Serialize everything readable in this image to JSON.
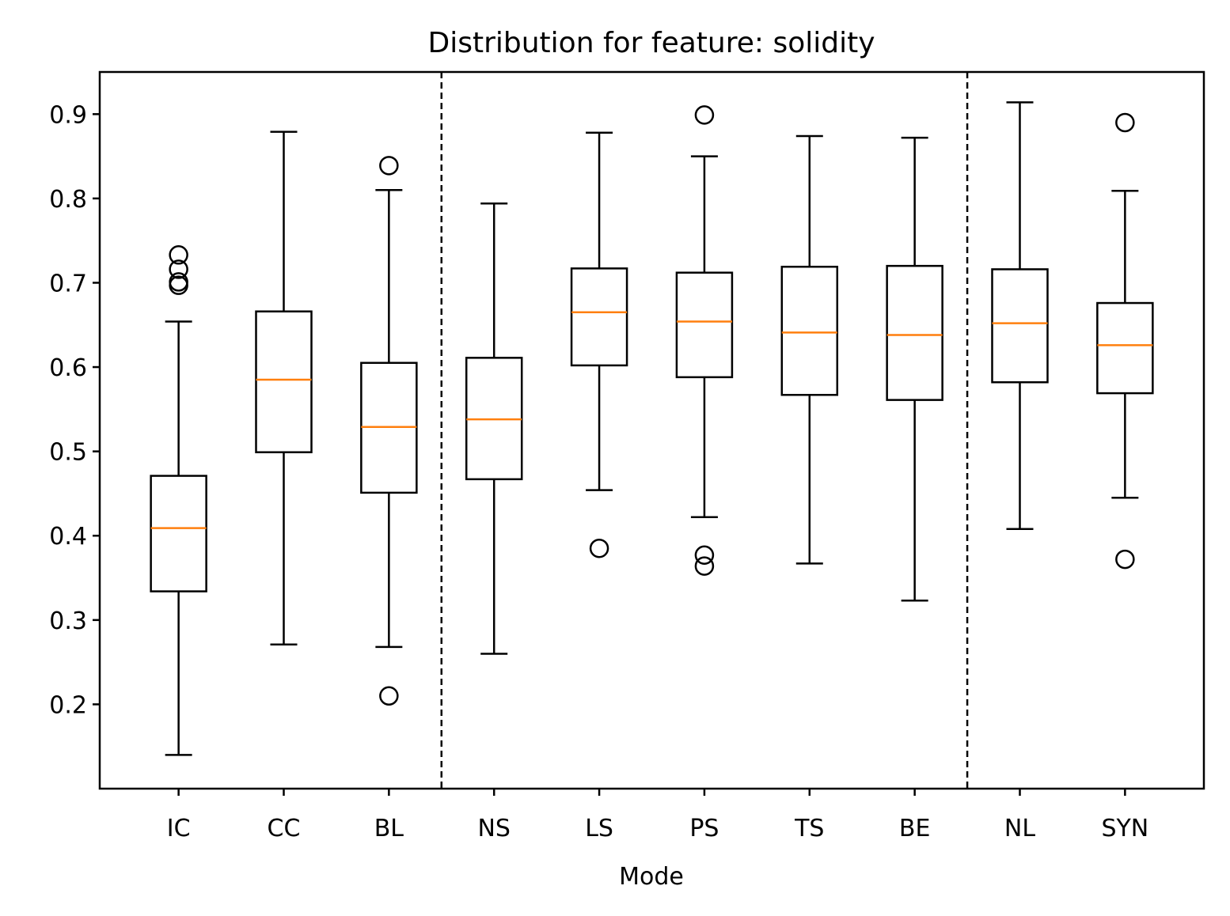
{
  "chart_data": {
    "type": "box",
    "title": "Distribution for feature: solidity",
    "xlabel": "Mode",
    "ylabel": "",
    "ylim": [
      0.1,
      0.95
    ],
    "yticks": [
      "0.2",
      "0.3",
      "0.4",
      "0.5",
      "0.6",
      "0.7",
      "0.8",
      "0.9"
    ],
    "grid": false,
    "box_color": "#000000",
    "median_color": "#ff7f0e",
    "separators_after_index": [
      2,
      7
    ],
    "categories": [
      "IC",
      "CC",
      "BL",
      "NS",
      "LS",
      "PS",
      "TS",
      "BE",
      "NL",
      "SYN"
    ],
    "boxes": [
      {
        "label": "IC",
        "whisker_low": 0.14,
        "q1": 0.334,
        "median": 0.409,
        "q3": 0.471,
        "whisker_high": 0.654,
        "outliers": [
          0.733,
          0.716,
          0.701,
          0.697
        ]
      },
      {
        "label": "CC",
        "whisker_low": 0.271,
        "q1": 0.499,
        "median": 0.585,
        "q3": 0.666,
        "whisker_high": 0.879,
        "outliers": []
      },
      {
        "label": "BL",
        "whisker_low": 0.268,
        "q1": 0.451,
        "median": 0.529,
        "q3": 0.605,
        "whisker_high": 0.81,
        "outliers": [
          0.839,
          0.21
        ]
      },
      {
        "label": "NS",
        "whisker_low": 0.26,
        "q1": 0.467,
        "median": 0.538,
        "q3": 0.611,
        "whisker_high": 0.794,
        "outliers": []
      },
      {
        "label": "LS",
        "whisker_low": 0.454,
        "q1": 0.602,
        "median": 0.665,
        "q3": 0.717,
        "whisker_high": 0.878,
        "outliers": [
          0.385
        ]
      },
      {
        "label": "PS",
        "whisker_low": 0.422,
        "q1": 0.588,
        "median": 0.654,
        "q3": 0.712,
        "whisker_high": 0.85,
        "outliers": [
          0.899,
          0.377,
          0.364
        ]
      },
      {
        "label": "TS",
        "whisker_low": 0.367,
        "q1": 0.567,
        "median": 0.641,
        "q3": 0.719,
        "whisker_high": 0.874,
        "outliers": []
      },
      {
        "label": "BE",
        "whisker_low": 0.323,
        "q1": 0.561,
        "median": 0.638,
        "q3": 0.72,
        "whisker_high": 0.872,
        "outliers": []
      },
      {
        "label": "NL",
        "whisker_low": 0.408,
        "q1": 0.582,
        "median": 0.652,
        "q3": 0.716,
        "whisker_high": 0.914,
        "outliers": []
      },
      {
        "label": "SYN",
        "whisker_low": 0.445,
        "q1": 0.569,
        "median": 0.626,
        "q3": 0.676,
        "whisker_high": 0.809,
        "outliers": [
          0.89,
          0.372
        ]
      }
    ]
  }
}
